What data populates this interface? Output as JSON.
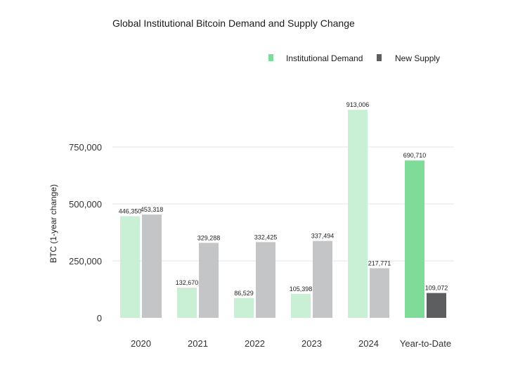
{
  "chart_data": {
    "type": "bar",
    "title": "Global Institutional Bitcoin Demand and Supply Change",
    "ylabel": "BTC (1-year change)",
    "xlabel": "",
    "ylim": [
      0,
      950000
    ],
    "yticks": [
      0,
      250000,
      500000,
      750000
    ],
    "ytick_labels": [
      "0",
      "250,000",
      "500,000",
      "750,000"
    ],
    "grid": true,
    "legend_position": "top-right",
    "categories": [
      "2020",
      "2021",
      "2022",
      "2023",
      "2024",
      "Year-to-Date"
    ],
    "series": [
      {
        "name": "Institutional Demand",
        "color": "#c9f0d4",
        "values": [
          446350,
          132670,
          86529,
          105398,
          913006,
          690710
        ],
        "labels": [
          "446,350",
          "132,670",
          "86,529",
          "105,398",
          "913,006",
          "690,710"
        ]
      },
      {
        "name": "New Supply",
        "color": "#c4c5c6",
        "values": [
          453318,
          329288,
          332425,
          337494,
          217771,
          109072
        ],
        "labels": [
          "453,318",
          "329,288",
          "332,425",
          "337,494",
          "217,771",
          "109,072"
        ]
      }
    ],
    "highlight": {
      "category": "Year-to-Date",
      "colors": [
        "#7fdc98",
        "#5c5e60"
      ]
    },
    "legend_colors": [
      "#7fdc98",
      "#5c5e60"
    ]
  }
}
